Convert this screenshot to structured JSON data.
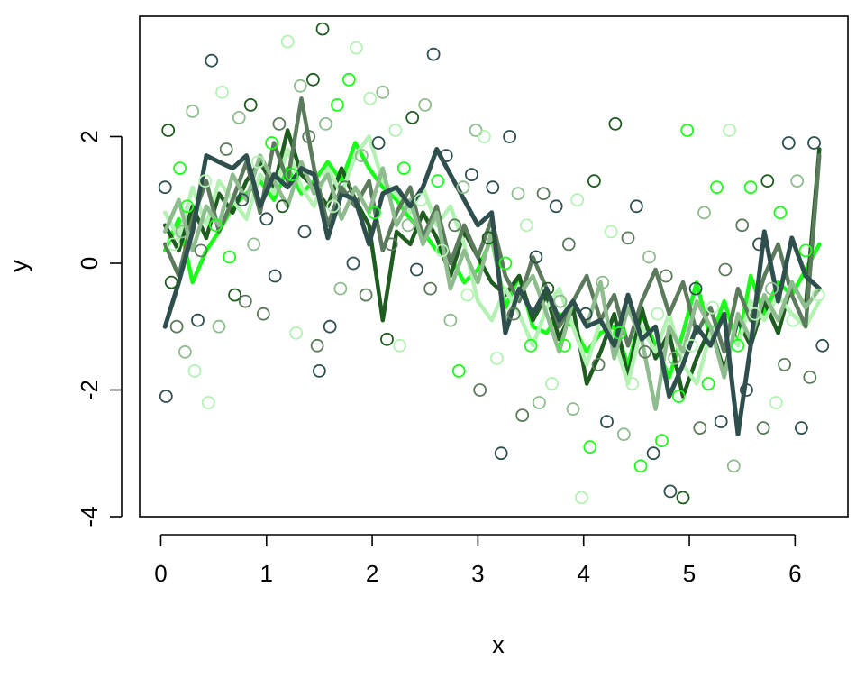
{
  "chart_data": {
    "type": "scatter",
    "title": "",
    "xlabel": "x",
    "ylabel": "y",
    "xlim": [
      -0.2,
      6.5
    ],
    "ylim": [
      -4,
      3.9
    ],
    "x_ticks": [
      {
        "value": 0,
        "label": "0"
      },
      {
        "value": 1,
        "label": "1"
      },
      {
        "value": 2,
        "label": "2"
      },
      {
        "value": 3,
        "label": "3"
      },
      {
        "value": 4,
        "label": "4"
      },
      {
        "value": 5,
        "label": "5"
      },
      {
        "value": 6,
        "label": "6"
      }
    ],
    "y_ticks": [
      {
        "value": -4,
        "label": "-4"
      },
      {
        "value": -2,
        "label": "-2"
      },
      {
        "value": 0,
        "label": "0"
      },
      {
        "value": 2,
        "label": "2"
      }
    ],
    "grid": false,
    "legend": "none",
    "x": [
      0.04,
      0.17,
      0.3,
      0.43,
      0.55,
      0.68,
      0.81,
      0.94,
      1.07,
      1.2,
      1.33,
      1.45,
      1.58,
      1.71,
      1.84,
      1.97,
      2.1,
      2.23,
      2.36,
      2.48,
      2.61,
      2.74,
      2.87,
      3.0,
      3.13,
      3.26,
      3.39,
      3.52,
      3.65,
      3.77,
      3.9,
      4.03,
      4.16,
      4.29,
      4.42,
      4.55,
      4.68,
      4.81,
      4.94,
      5.07,
      5.2,
      5.33,
      5.46,
      5.58,
      5.71,
      5.84,
      5.97,
      6.1,
      6.23
    ],
    "series": [
      {
        "color": "#2f4f4f",
        "values": [
          -1.0,
          -0.3,
          0.5,
          1.7,
          1.6,
          1.5,
          1.7,
          0.9,
          1.4,
          1.2,
          1.5,
          1.4,
          0.4,
          1.1,
          1.0,
          0.3,
          1.1,
          1.2,
          0.9,
          1.2,
          1.8,
          1.4,
          1.0,
          0.6,
          0.8,
          -1.1,
          -0.4,
          -0.8,
          -0.4,
          -0.9,
          -0.6,
          -1.0,
          -0.9,
          -1.3,
          -0.5,
          -1.2,
          -1.0,
          -2.1,
          -1.6,
          -1.0,
          -1.3,
          -0.8,
          -2.7,
          -1.3,
          0.5,
          -0.6,
          0.4,
          -0.2,
          -0.4
        ]
      },
      {
        "color": "#1aff1a",
        "values": [
          0.2,
          0.7,
          -0.3,
          0.2,
          0.5,
          0.9,
          1.1,
          1.3,
          1.0,
          1.5,
          1.1,
          1.3,
          1.6,
          1.3,
          1.9,
          1.5,
          1.2,
          1.0,
          0.7,
          0.5,
          0.2,
          0.1,
          -0.3,
          -0.1,
          0.4,
          -0.7,
          -0.2,
          -1.0,
          -1.1,
          -0.8,
          -1.0,
          -1.4,
          -1.1,
          -1.0,
          -1.6,
          -0.8,
          -1.3,
          -1.8,
          -1.1,
          -0.3,
          -1.2,
          -0.6,
          -1.3,
          -0.2,
          -0.8,
          -0.3,
          -0.5,
          -0.1,
          0.3
        ]
      },
      {
        "color": "#1f5c1f",
        "values": [
          0.6,
          0.2,
          0.9,
          0.4,
          1.1,
          0.8,
          1.3,
          1.6,
          1.2,
          2.1,
          1.4,
          1.2,
          0.9,
          1.5,
          1.0,
          0.6,
          -0.9,
          0.5,
          0.3,
          0.8,
          0.4,
          -0.2,
          0.5,
          0.1,
          -0.3,
          -0.5,
          -0.2,
          -0.9,
          -0.5,
          -1.2,
          -0.7,
          -1.9,
          -1.4,
          -0.8,
          -1.8,
          -0.7,
          -1.5,
          -1.1,
          -2.1,
          -1.5,
          -1.0,
          -1.7,
          -0.9,
          -1.3,
          -0.6,
          -1.1,
          -0.3,
          -0.7,
          1.8
        ]
      },
      {
        "color": "#b3f2b3",
        "values": [
          0.8,
          0.4,
          1.2,
          0.6,
          1.3,
          1.0,
          0.7,
          1.4,
          1.1,
          1.8,
          1.2,
          0.9,
          1.5,
          1.1,
          1.7,
          2.0,
          1.3,
          1.1,
          0.8,
          1.2,
          0.6,
          0.9,
          0.3,
          -0.6,
          -0.9,
          -0.4,
          -0.8,
          -1.3,
          -0.7,
          -0.4,
          -1.0,
          -1.6,
          -0.9,
          -1.2,
          -1.9,
          -1.0,
          -1.4,
          -0.8,
          -1.6,
          -1.9,
          -1.1,
          -0.9,
          -1.3,
          -0.6,
          -0.9,
          -0.5,
          -0.8,
          -1.0,
          -0.6
        ]
      },
      {
        "color": "#5c7a5c",
        "values": [
          0.3,
          -0.2,
          0.7,
          1.3,
          0.5,
          1.0,
          1.6,
          0.8,
          1.9,
          1.3,
          2.6,
          1.5,
          0.6,
          1.2,
          0.9,
          1.3,
          0.2,
          0.8,
          1.2,
          0.4,
          0.9,
          0.0,
          0.6,
          0.1,
          0.7,
          -0.2,
          -0.6,
          0.1,
          -0.4,
          -1.0,
          -0.6,
          -0.2,
          -0.9,
          -0.5,
          -1.3,
          -0.6,
          -0.1,
          -0.8,
          -0.3,
          -1.1,
          -0.7,
          -1.4,
          -0.4,
          -0.9,
          -0.2,
          0.3,
          -0.5,
          -1.0,
          1.7
        ]
      },
      {
        "color": "#8fbc8f",
        "values": [
          0.5,
          1.0,
          0.2,
          0.9,
          0.6,
          1.4,
          1.0,
          1.7,
          1.3,
          0.9,
          1.6,
          1.1,
          1.4,
          0.7,
          1.2,
          0.8,
          1.5,
          0.6,
          1.0,
          0.3,
          0.8,
          -0.4,
          0.2,
          -0.3,
          0.5,
          -0.9,
          -0.5,
          -0.2,
          -0.8,
          -1.4,
          -0.6,
          -1.0,
          -0.3,
          -1.5,
          -0.7,
          -1.2,
          -2.3,
          -1.0,
          -1.4,
          -0.6,
          -1.0,
          -1.8,
          -0.8,
          -1.2,
          -0.5,
          -0.9,
          -0.3,
          -0.7,
          -0.4
        ]
      }
    ],
    "scatter_points": [
      [
        0.04,
        1.2,
        "#2f4f4f"
      ],
      [
        0.05,
        -2.1,
        "#2f4f4f"
      ],
      [
        0.07,
        2.1,
        "#1f5c1f"
      ],
      [
        0.1,
        -0.3,
        "#1f5c1f"
      ],
      [
        0.12,
        0.3,
        "#b3f2b3"
      ],
      [
        0.15,
        -1.0,
        "#5c7a5c"
      ],
      [
        0.18,
        1.5,
        "#1aff1a"
      ],
      [
        0.2,
        0.5,
        "#8fbc8f"
      ],
      [
        0.23,
        -1.4,
        "#8fbc8f"
      ],
      [
        0.25,
        0.9,
        "#1aff1a"
      ],
      [
        0.3,
        2.4,
        "#8fbc8f"
      ],
      [
        0.32,
        -1.7,
        "#b3f2b3"
      ],
      [
        0.35,
        -0.9,
        "#2f4f4f"
      ],
      [
        0.38,
        0.2,
        "#5c7a5c"
      ],
      [
        0.42,
        1.3,
        "#b3f2b3"
      ],
      [
        0.45,
        -2.2,
        "#b3f2b3"
      ],
      [
        0.48,
        3.2,
        "#2f4f4f"
      ],
      [
        0.52,
        0.6,
        "#1aff1a"
      ],
      [
        0.55,
        -1.0,
        "#8fbc8f"
      ],
      [
        0.58,
        2.7,
        "#b3f2b3"
      ],
      [
        0.62,
        1.8,
        "#5c7a5c"
      ],
      [
        0.65,
        0.1,
        "#1aff1a"
      ],
      [
        0.7,
        -0.5,
        "#1f5c1f"
      ],
      [
        0.74,
        2.3,
        "#8fbc8f"
      ],
      [
        0.77,
        1.0,
        "#2f4f4f"
      ],
      [
        0.8,
        -0.6,
        "#5c7a5c"
      ],
      [
        0.85,
        2.5,
        "#1f5c1f"
      ],
      [
        0.88,
        0.3,
        "#8fbc8f"
      ],
      [
        0.92,
        1.6,
        "#b3f2b3"
      ],
      [
        0.97,
        -0.8,
        "#5c7a5c"
      ],
      [
        1.0,
        0.7,
        "#2f4f4f"
      ],
      [
        1.05,
        1.9,
        "#1aff1a"
      ],
      [
        1.08,
        -0.2,
        "#2f4f4f"
      ],
      [
        1.12,
        2.2,
        "#5c7a5c"
      ],
      [
        1.15,
        0.9,
        "#1f5c1f"
      ],
      [
        1.2,
        3.5,
        "#b3f2b3"
      ],
      [
        1.24,
        1.4,
        "#1aff1a"
      ],
      [
        1.28,
        -1.1,
        "#b3f2b3"
      ],
      [
        1.32,
        2.8,
        "#8fbc8f"
      ],
      [
        1.36,
        0.5,
        "#2f4f4f"
      ],
      [
        1.4,
        2.0,
        "#5c7a5c"
      ],
      [
        1.44,
        2.9,
        "#1f5c1f"
      ],
      [
        1.48,
        -1.3,
        "#5c7a5c"
      ],
      [
        1.5,
        -1.7,
        "#2f4f4f"
      ],
      [
        1.53,
        3.7,
        "#1f5c1f"
      ],
      [
        1.56,
        2.2,
        "#8fbc8f"
      ],
      [
        1.6,
        -1.0,
        "#2f4f4f"
      ],
      [
        1.63,
        0.9,
        "#b3f2b3"
      ],
      [
        1.67,
        2.5,
        "#1aff1a"
      ],
      [
        1.7,
        -0.4,
        "#8fbc8f"
      ],
      [
        1.74,
        1.2,
        "#5c7a5c"
      ],
      [
        1.78,
        2.9,
        "#1aff1a"
      ],
      [
        1.82,
        0.0,
        "#2f4f4f"
      ],
      [
        1.85,
        3.4,
        "#b3f2b3"
      ],
      [
        1.9,
        1.7,
        "#8fbc8f"
      ],
      [
        1.94,
        -0.5,
        "#5c7a5c"
      ],
      [
        1.98,
        2.6,
        "#b3f2b3"
      ],
      [
        2.02,
        0.8,
        "#1aff1a"
      ],
      [
        2.06,
        1.9,
        "#2f4f4f"
      ],
      [
        2.1,
        2.7,
        "#8fbc8f"
      ],
      [
        2.14,
        -1.2,
        "#1f5c1f"
      ],
      [
        2.18,
        0.3,
        "#5c7a5c"
      ],
      [
        2.22,
        2.1,
        "#b3f2b3"
      ],
      [
        2.26,
        -1.3,
        "#b3f2b3"
      ],
      [
        2.3,
        1.5,
        "#1aff1a"
      ],
      [
        2.34,
        0.6,
        "#8fbc8f"
      ],
      [
        2.38,
        2.3,
        "#1f5c1f"
      ],
      [
        2.42,
        -0.1,
        "#2f4f4f"
      ],
      [
        2.46,
        1.0,
        "#b3f2b3"
      ],
      [
        2.5,
        2.5,
        "#8fbc8f"
      ],
      [
        2.55,
        -0.4,
        "#5c7a5c"
      ],
      [
        2.58,
        3.3,
        "#2f4f4f"
      ],
      [
        2.62,
        1.3,
        "#1aff1a"
      ],
      [
        2.66,
        0.2,
        "#b3f2b3"
      ],
      [
        2.7,
        1.7,
        "#2f4f4f"
      ],
      [
        2.74,
        -0.9,
        "#8fbc8f"
      ],
      [
        2.78,
        0.6,
        "#5c7a5c"
      ],
      [
        2.82,
        -1.7,
        "#1aff1a"
      ],
      [
        2.86,
        1.2,
        "#8fbc8f"
      ],
      [
        2.9,
        -0.5,
        "#b3f2b3"
      ],
      [
        2.94,
        1.4,
        "#2f4f4f"
      ],
      [
        2.98,
        2.1,
        "#8fbc8f"
      ],
      [
        3.02,
        -2.0,
        "#5c7a5c"
      ],
      [
        3.06,
        2.0,
        "#b3f2b3"
      ],
      [
        3.1,
        0.4,
        "#1f5c1f"
      ],
      [
        3.14,
        1.2,
        "#2f4f4f"
      ],
      [
        3.18,
        -1.5,
        "#b3f2b3"
      ],
      [
        3.22,
        -3.0,
        "#2f4f4f"
      ],
      [
        3.26,
        0.0,
        "#1aff1a"
      ],
      [
        3.3,
        2.0,
        "#2f4f4f"
      ],
      [
        3.34,
        -0.8,
        "#5c7a5c"
      ],
      [
        3.38,
        1.1,
        "#8fbc8f"
      ],
      [
        3.42,
        -2.4,
        "#5c7a5c"
      ],
      [
        3.46,
        0.6,
        "#b3f2b3"
      ],
      [
        3.5,
        -1.3,
        "#1aff1a"
      ],
      [
        3.55,
        0.1,
        "#2f4f4f"
      ],
      [
        3.58,
        -2.2,
        "#8fbc8f"
      ],
      [
        3.62,
        1.1,
        "#5c7a5c"
      ],
      [
        3.66,
        -0.4,
        "#1f5c1f"
      ],
      [
        3.7,
        -1.9,
        "#b3f2b3"
      ],
      [
        3.74,
        0.9,
        "#2f4f4f"
      ],
      [
        3.78,
        -0.6,
        "#8fbc8f"
      ],
      [
        3.82,
        -1.3,
        "#1aff1a"
      ],
      [
        3.86,
        0.3,
        "#5c7a5c"
      ],
      [
        3.9,
        -2.3,
        "#8fbc8f"
      ],
      [
        3.94,
        1.0,
        "#b3f2b3"
      ],
      [
        3.98,
        -3.7,
        "#b3f2b3"
      ],
      [
        4.02,
        -0.8,
        "#2f4f4f"
      ],
      [
        4.06,
        -2.9,
        "#1aff1a"
      ],
      [
        4.1,
        1.3,
        "#1f5c1f"
      ],
      [
        4.14,
        -1.6,
        "#5c7a5c"
      ],
      [
        4.18,
        -0.3,
        "#8fbc8f"
      ],
      [
        4.22,
        -2.5,
        "#2f4f4f"
      ],
      [
        4.26,
        0.5,
        "#b3f2b3"
      ],
      [
        4.3,
        2.2,
        "#1f5c1f"
      ],
      [
        4.34,
        -1.1,
        "#1aff1a"
      ],
      [
        4.38,
        -2.7,
        "#8fbc8f"
      ],
      [
        4.42,
        0.4,
        "#5c7a5c"
      ],
      [
        4.46,
        -1.9,
        "#b3f2b3"
      ],
      [
        4.5,
        0.9,
        "#2f4f4f"
      ],
      [
        4.54,
        -3.2,
        "#1aff1a"
      ],
      [
        4.58,
        -1.4,
        "#5c7a5c"
      ],
      [
        4.62,
        0.1,
        "#8fbc8f"
      ],
      [
        4.66,
        -3.0,
        "#2f4f4f"
      ],
      [
        4.7,
        -0.8,
        "#b3f2b3"
      ],
      [
        4.74,
        -2.8,
        "#1aff1a"
      ],
      [
        4.78,
        -0.2,
        "#5c7a5c"
      ],
      [
        4.82,
        -3.6,
        "#2f4f4f"
      ],
      [
        4.86,
        -1.5,
        "#8fbc8f"
      ],
      [
        4.9,
        -2.1,
        "#1aff1a"
      ],
      [
        4.94,
        -3.7,
        "#1f5c1f"
      ],
      [
        4.98,
        2.1,
        "#1aff1a"
      ],
      [
        5.02,
        -1.3,
        "#b3f2b3"
      ],
      [
        5.06,
        -0.4,
        "#2f4f4f"
      ],
      [
        5.1,
        -2.6,
        "#5c7a5c"
      ],
      [
        5.14,
        0.8,
        "#8fbc8f"
      ],
      [
        5.18,
        -1.9,
        "#1aff1a"
      ],
      [
        5.22,
        -0.7,
        "#b3f2b3"
      ],
      [
        5.26,
        1.2,
        "#1aff1a"
      ],
      [
        5.3,
        -2.5,
        "#2f4f4f"
      ],
      [
        5.34,
        -0.1,
        "#5c7a5c"
      ],
      [
        5.38,
        2.1,
        "#b3f2b3"
      ],
      [
        5.42,
        -3.2,
        "#8fbc8f"
      ],
      [
        5.46,
        -1.3,
        "#1aff1a"
      ],
      [
        5.5,
        0.6,
        "#5c7a5c"
      ],
      [
        5.54,
        -2.0,
        "#2f4f4f"
      ],
      [
        5.58,
        1.2,
        "#1aff1a"
      ],
      [
        5.62,
        -0.8,
        "#b3f2b3"
      ],
      [
        5.66,
        0.3,
        "#2f4f4f"
      ],
      [
        5.7,
        -2.6,
        "#5c7a5c"
      ],
      [
        5.74,
        1.3,
        "#1f5c1f"
      ],
      [
        5.78,
        -0.4,
        "#8fbc8f"
      ],
      [
        5.82,
        -2.2,
        "#b3f2b3"
      ],
      [
        5.86,
        0.8,
        "#1aff1a"
      ],
      [
        5.9,
        -1.6,
        "#5c7a5c"
      ],
      [
        5.94,
        1.9,
        "#2f4f4f"
      ],
      [
        5.98,
        -0.9,
        "#b3f2b3"
      ],
      [
        6.02,
        1.3,
        "#8fbc8f"
      ],
      [
        6.06,
        -2.6,
        "#2f4f4f"
      ],
      [
        6.1,
        0.2,
        "#1aff1a"
      ],
      [
        6.14,
        -1.8,
        "#5c7a5c"
      ],
      [
        6.18,
        1.9,
        "#2f4f4f"
      ],
      [
        6.22,
        -0.5,
        "#b3f2b3"
      ],
      [
        6.26,
        -1.3,
        "#2f4f4f"
      ]
    ]
  }
}
